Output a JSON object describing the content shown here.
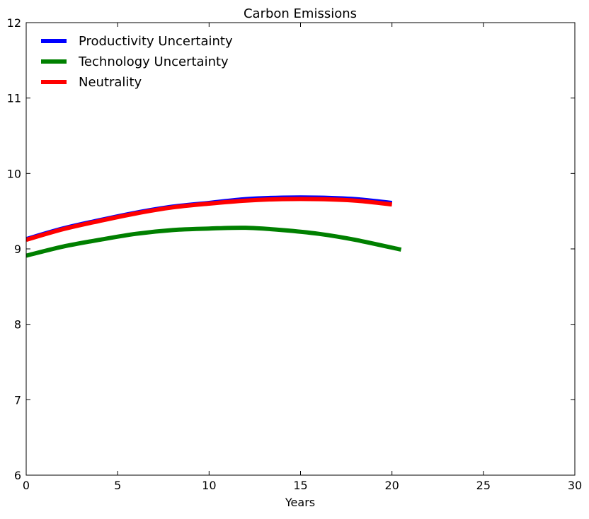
{
  "chart_data": {
    "type": "line",
    "title": "Carbon Emissions",
    "xlabel": "Years",
    "ylabel": "",
    "xlim": [
      0,
      30
    ],
    "ylim": [
      6,
      12
    ],
    "xticks": [
      0,
      5,
      10,
      15,
      20,
      25,
      30
    ],
    "yticks": [
      6,
      7,
      8,
      9,
      10,
      11,
      12
    ],
    "grid": false,
    "legend_position": "top-left",
    "series": [
      {
        "name": "Productivity Uncertainty",
        "color": "#0000ff",
        "x": [
          0,
          2,
          4,
          6,
          8,
          10,
          12,
          14,
          16,
          18,
          20
        ],
        "y": [
          9.13,
          9.27,
          9.38,
          9.48,
          9.56,
          9.61,
          9.66,
          9.68,
          9.68,
          9.66,
          9.61
        ]
      },
      {
        "name": "Technology Uncertainty",
        "color": "#008000",
        "x": [
          0,
          2,
          4,
          6,
          8,
          10,
          12,
          14,
          16,
          18,
          20.5
        ],
        "y": [
          8.91,
          9.03,
          9.12,
          9.2,
          9.25,
          9.27,
          9.28,
          9.25,
          9.2,
          9.12,
          8.99
        ]
      },
      {
        "name": "Neutrality",
        "color": "#ff0000",
        "x": [
          0,
          2,
          4,
          6,
          8,
          10,
          12,
          14,
          16,
          18,
          20
        ],
        "y": [
          9.12,
          9.26,
          9.37,
          9.47,
          9.55,
          9.6,
          9.64,
          9.66,
          9.66,
          9.64,
          9.59
        ]
      }
    ]
  }
}
